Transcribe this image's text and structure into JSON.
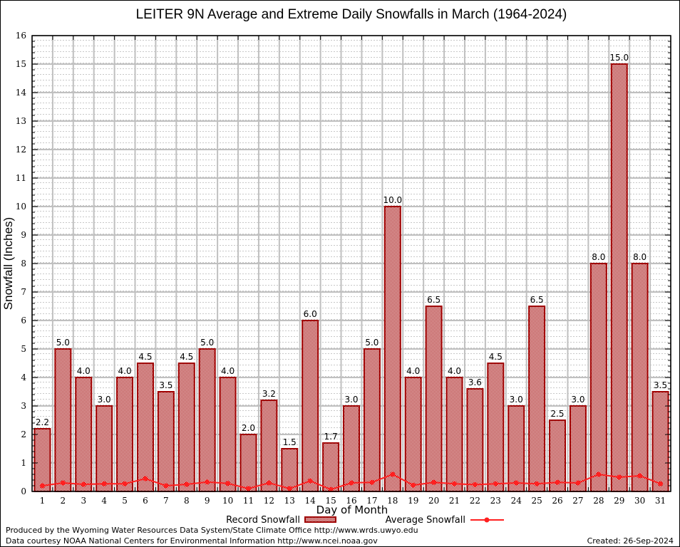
{
  "chart_data": {
    "type": "bar",
    "title": "LEITER 9N Average and Extreme Daily Snowfalls in March (1964-2024)",
    "xlabel": "Day of Month",
    "ylabel": "Snowfall (Inches)",
    "ylim": [
      0,
      16
    ],
    "yticks": [
      0,
      1,
      2,
      3,
      4,
      5,
      6,
      7,
      8,
      9,
      10,
      11,
      12,
      13,
      14,
      15,
      16
    ],
    "grid": true,
    "categories": [
      "1",
      "2",
      "3",
      "4",
      "5",
      "6",
      "7",
      "8",
      "9",
      "10",
      "11",
      "12",
      "13",
      "14",
      "15",
      "16",
      "17",
      "18",
      "19",
      "20",
      "21",
      "22",
      "23",
      "24",
      "25",
      "26",
      "27",
      "28",
      "29",
      "30",
      "31"
    ],
    "series": [
      {
        "name": "Record Snowfall",
        "kind": "bar",
        "color": "#a00000",
        "values": [
          2.2,
          5.0,
          4.0,
          3.0,
          4.0,
          4.5,
          3.5,
          4.5,
          5.0,
          4.0,
          2.0,
          3.2,
          1.5,
          6.0,
          1.7,
          3.0,
          5.0,
          10.0,
          4.0,
          6.5,
          4.0,
          3.6,
          4.5,
          3.0,
          6.5,
          2.5,
          3.0,
          8.0,
          15.0,
          8.0,
          3.5
        ],
        "labels": [
          "2.2",
          "5.0",
          "4.0",
          "3.0",
          "4.0",
          "4.5",
          "3.5",
          "4.5",
          "5.0",
          "4.0",
          "2.0",
          "3.2",
          "1.5",
          "6.0",
          "1.7",
          "3.0",
          "5.0",
          "10.0",
          "4.0",
          "6.5",
          "4.0",
          "3.6",
          "4.5",
          "3.0",
          "6.5",
          "2.5",
          "3.0",
          "8.0",
          "15.0",
          "8.0",
          "3.5"
        ]
      },
      {
        "name": "Average Snowfall",
        "kind": "line",
        "color": "#ff2020",
        "values": [
          0.2,
          0.3,
          0.25,
          0.27,
          0.27,
          0.45,
          0.2,
          0.25,
          0.33,
          0.28,
          0.1,
          0.3,
          0.1,
          0.37,
          0.07,
          0.3,
          0.32,
          0.6,
          0.22,
          0.32,
          0.27,
          0.24,
          0.27,
          0.3,
          0.27,
          0.32,
          0.3,
          0.6,
          0.5,
          0.55,
          0.27
        ]
      }
    ],
    "legend": {
      "placement": "bottom-center"
    }
  },
  "footer": {
    "line1": "Produced by the Wyoming Water Resources Data System/State Climate Office http://www.wrds.uwyo.edu",
    "line2": "Data courtesy NOAA National Centers for Environmental Information http://www.ncei.noaa.gov",
    "created": "Created: 26-Sep-2024"
  }
}
